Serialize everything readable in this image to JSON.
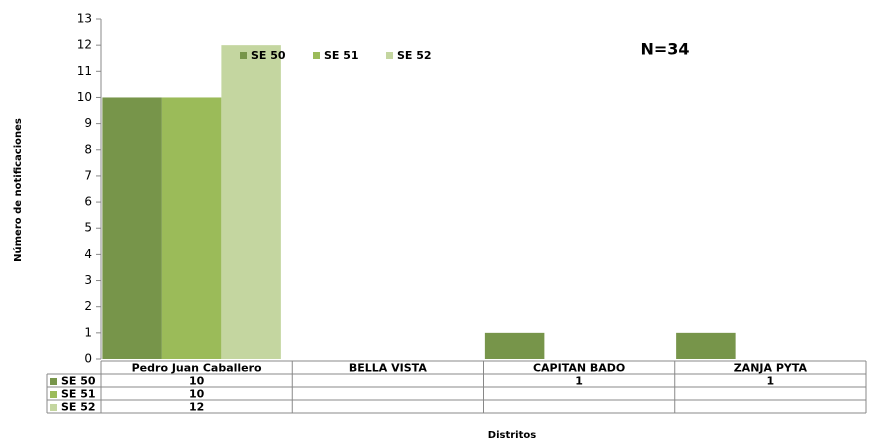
{
  "chart_data": {
    "type": "bar",
    "annotation": "N=34",
    "y_axis_label": "Número de notificaciones",
    "x_axis_label": "Distritos",
    "categories": [
      "Pedro Juan Caballero",
      "BELLA VISTA",
      "CAPITAN BADO",
      "ZANJA PYTA"
    ],
    "series": [
      {
        "name": "SE 50",
        "color": "#77954a",
        "values": [
          10,
          null,
          1,
          1
        ]
      },
      {
        "name": "SE 51",
        "color": "#9bbb59",
        "values": [
          10,
          null,
          null,
          null
        ]
      },
      {
        "name": "SE 52",
        "color": "#c4d6a0",
        "values": [
          12,
          null,
          null,
          null
        ]
      }
    ],
    "ylim": [
      0,
      13
    ],
    "yticks": [
      0,
      1,
      2,
      3,
      4,
      5,
      6,
      7,
      8,
      9,
      10,
      11,
      12,
      13
    ],
    "grid": false,
    "legend": "top"
  }
}
